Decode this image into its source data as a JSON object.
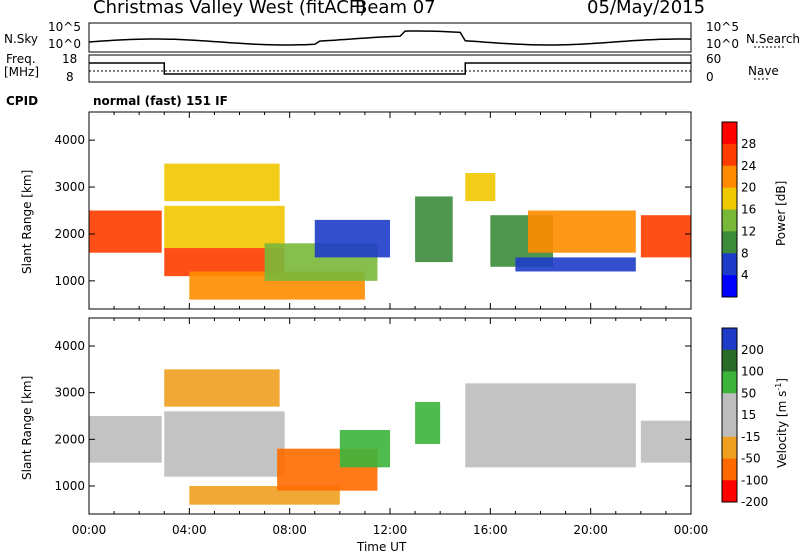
{
  "header": {
    "station": "Christmas Valley West (fitACF)",
    "beam": "Beam 07",
    "date": "05/May/2015"
  },
  "status": {
    "nsky_label": "N.Sky",
    "nsearch_label": "N.Search",
    "freq_label": "Freq.",
    "freq_unit": "[MHz]",
    "nave_label": "Nave",
    "cpid_label": "CPID",
    "cpid_value": "normal (fast) 151 IF",
    "noise_ticks_left": [
      "10^5",
      "10^0"
    ],
    "noise_ticks_right": [
      "10^5",
      "10^0"
    ],
    "freq_ticks": [
      "18",
      "8"
    ],
    "nave_ticks": [
      "60",
      "0"
    ]
  },
  "colors": {
    "power": [
      "#0000ff",
      "#1e3cc8",
      "#3c8c3c",
      "#7ab83a",
      "#f0c800",
      "#ff8c00",
      "#ff3c00",
      "#ff0000"
    ],
    "velocity": [
      "#1e3cc8",
      "#2a6b2a",
      "#3cb43c",
      "#bdbdbd",
      "#bdbdbd",
      "#f0a020",
      "#ff6a00",
      "#ff0000"
    ],
    "frame": "#000000"
  },
  "chart_data": [
    {
      "type": "heatmap",
      "name": "power",
      "ylabel": "Slant Range [km]",
      "xlabel": "Time UT",
      "xlim_hours": [
        0,
        24
      ],
      "ylim": [
        400,
        4600
      ],
      "yticks": [
        1000,
        2000,
        3000,
        4000
      ],
      "xticks": [
        "00:00",
        "04:00",
        "08:00",
        "12:00",
        "16:00",
        "20:00",
        "00:00"
      ],
      "colorbar": {
        "label": "Power [dB]",
        "ticks": [
          "4",
          "8",
          "12",
          "16",
          "20",
          "24",
          "28"
        ]
      },
      "bands": [
        {
          "t0": 0.0,
          "t1": 2.9,
          "r0": 1600,
          "r1": 2500,
          "level": 6
        },
        {
          "t0": 3.0,
          "t1": 7.8,
          "r0": 1100,
          "r1": 1700,
          "level": 6
        },
        {
          "t0": 3.0,
          "t1": 7.8,
          "r0": 1700,
          "r1": 2600,
          "level": 4
        },
        {
          "t0": 3.0,
          "t1": 7.6,
          "r0": 2700,
          "r1": 3500,
          "level": 4
        },
        {
          "t0": 4.0,
          "t1": 11.0,
          "r0": 600,
          "r1": 1200,
          "level": 5
        },
        {
          "t0": 7.0,
          "t1": 11.5,
          "r0": 1000,
          "r1": 1800,
          "level": 3
        },
        {
          "t0": 9.0,
          "t1": 12.0,
          "r0": 1500,
          "r1": 2300,
          "level": 1
        },
        {
          "t0": 13.0,
          "t1": 14.5,
          "r0": 1400,
          "r1": 2800,
          "level": 2
        },
        {
          "t0": 15.0,
          "t1": 16.2,
          "r0": 2700,
          "r1": 3300,
          "level": 4
        },
        {
          "t0": 16.0,
          "t1": 18.5,
          "r0": 1300,
          "r1": 2400,
          "level": 2
        },
        {
          "t0": 17.5,
          "t1": 21.8,
          "r0": 1600,
          "r1": 2500,
          "level": 5
        },
        {
          "t0": 17.0,
          "t1": 21.8,
          "r0": 1200,
          "r1": 1500,
          "level": 1
        },
        {
          "t0": 22.0,
          "t1": 24.0,
          "r0": 1500,
          "r1": 2400,
          "level": 6
        }
      ]
    },
    {
      "type": "heatmap",
      "name": "velocity",
      "ylabel": "Slant Range [km]",
      "xlabel": "Time UT",
      "xlim_hours": [
        0,
        24
      ],
      "ylim": [
        400,
        4600
      ],
      "yticks": [
        1000,
        2000,
        3000,
        4000
      ],
      "xticks": [
        "00:00",
        "04:00",
        "08:00",
        "12:00",
        "16:00",
        "20:00",
        "00:00"
      ],
      "colorbar": {
        "label": "Velocity [m s",
        "label_sup": "-1",
        "label_end": "]",
        "ticks": [
          "200",
          "100",
          "50",
          "15",
          "-15",
          "-50",
          "-100",
          "-200"
        ]
      },
      "bands": [
        {
          "t0": 0.0,
          "t1": 2.9,
          "r0": 1500,
          "r1": 2500,
          "level": 3
        },
        {
          "t0": 3.0,
          "t1": 7.8,
          "r0": 1200,
          "r1": 2600,
          "level": 3
        },
        {
          "t0": 3.0,
          "t1": 7.6,
          "r0": 2700,
          "r1": 3500,
          "level": 5
        },
        {
          "t0": 4.0,
          "t1": 10.0,
          "r0": 600,
          "r1": 1000,
          "level": 5
        },
        {
          "t0": 7.5,
          "t1": 11.5,
          "r0": 900,
          "r1": 1800,
          "level": 6
        },
        {
          "t0": 10.0,
          "t1": 12.0,
          "r0": 1400,
          "r1": 2200,
          "level": 2
        },
        {
          "t0": 13.0,
          "t1": 14.0,
          "r0": 1900,
          "r1": 2800,
          "level": 2
        },
        {
          "t0": 15.0,
          "t1": 21.8,
          "r0": 1400,
          "r1": 3200,
          "level": 3
        },
        {
          "t0": 22.0,
          "t1": 24.0,
          "r0": 1500,
          "r1": 2400,
          "level": 3
        }
      ]
    }
  ]
}
